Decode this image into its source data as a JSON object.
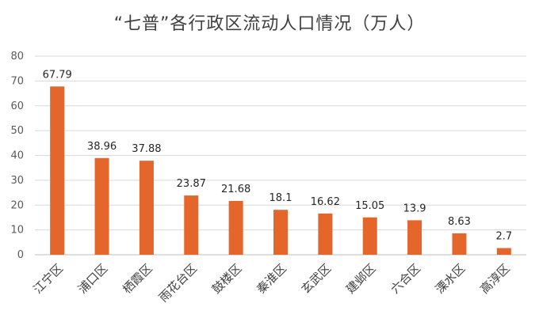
{
  "chart_data": {
    "type": "bar",
    "title": "“七普”各行政区流动人口情况（万人）",
    "categories": [
      "江宁区",
      "浦口区",
      "栖霞区",
      "雨花台区",
      "鼓楼区",
      "秦淮区",
      "玄武区",
      "建邺区",
      "六合区",
      "溧水区",
      "高淳区"
    ],
    "values": [
      67.79,
      38.96,
      37.88,
      23.87,
      21.68,
      18.1,
      16.62,
      15.05,
      13.9,
      8.63,
      2.7
    ],
    "value_labels": [
      "67.79",
      "38.96",
      "37.88",
      "23.87",
      "21.68",
      "18.1",
      "16.62",
      "15.05",
      "13.9",
      "8.63",
      "2.7"
    ],
    "ylim": [
      0,
      80
    ],
    "yticks": [
      0,
      10,
      20,
      30,
      40,
      50,
      60,
      70,
      80
    ],
    "xlabel": "",
    "ylabel": "",
    "grid": true,
    "bar_color": "#e4662b"
  }
}
